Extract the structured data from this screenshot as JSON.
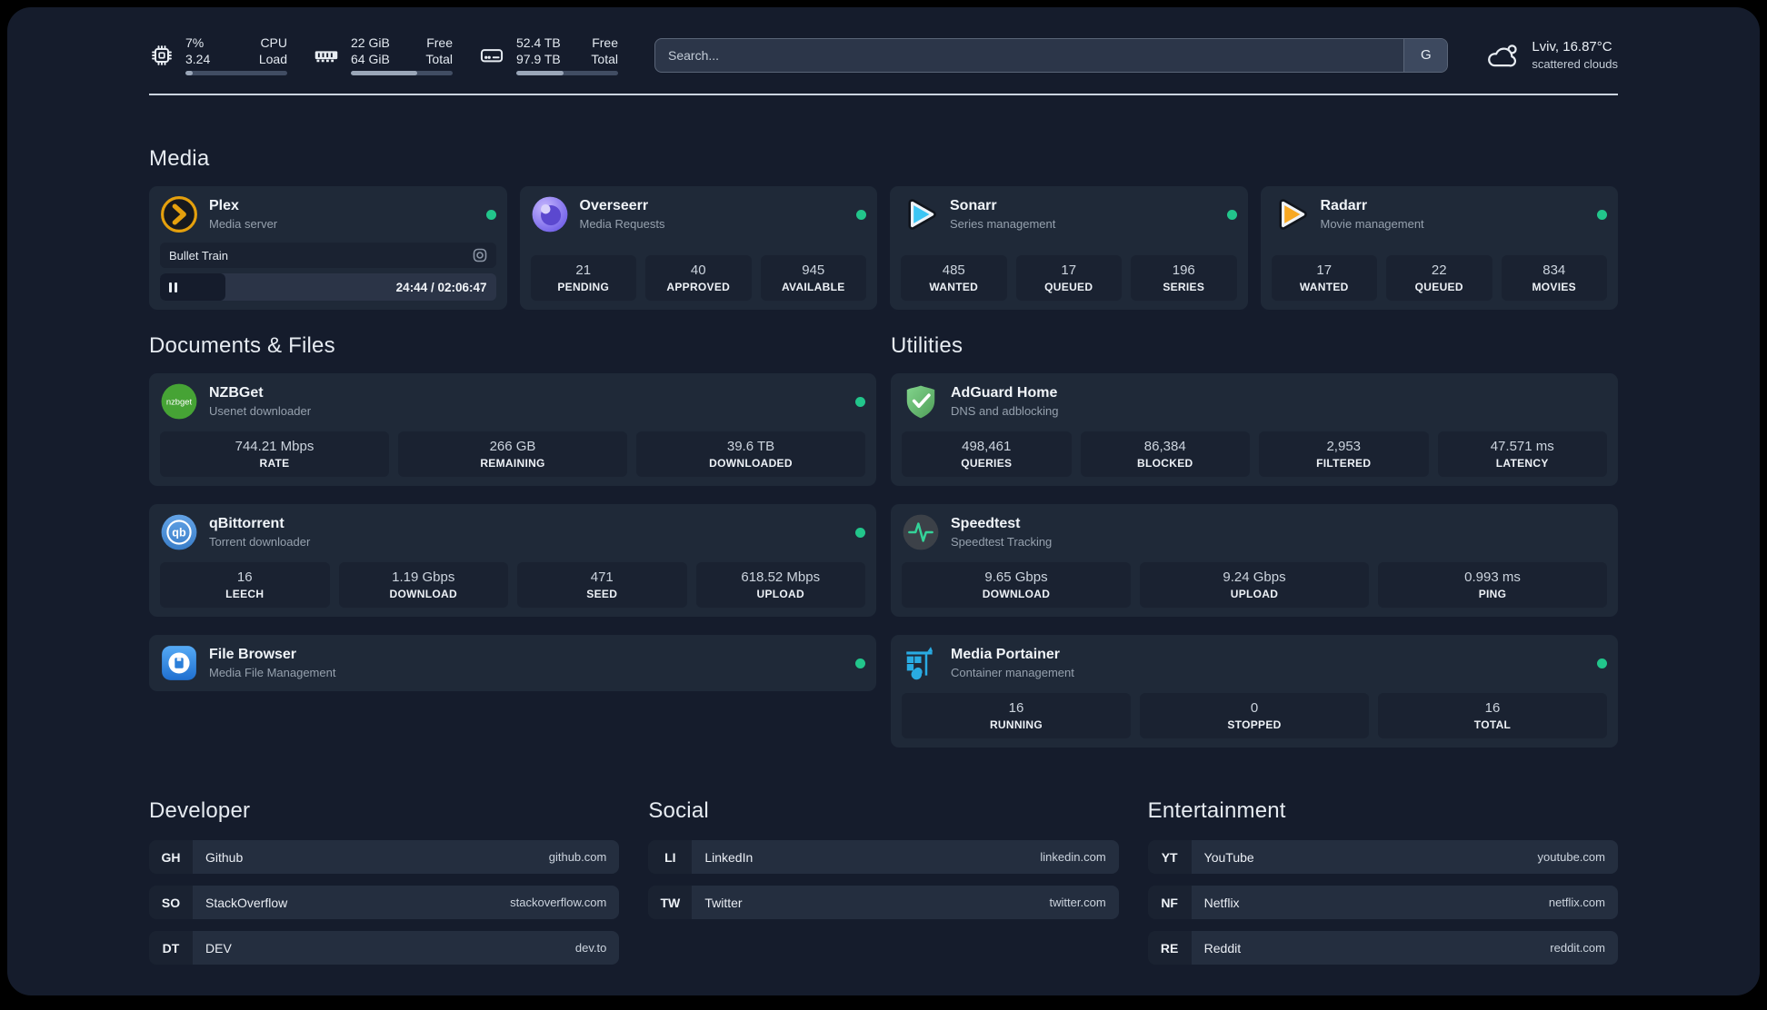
{
  "colors": {
    "background": "#151c2c",
    "card": "#1f2938",
    "status_online": "#22c58b",
    "plex_gold": "#e5a00d",
    "overseerr_purple": "#8571e6",
    "sonarr_blue": "#3cc5f4",
    "radarr_yellow": "#f7a823",
    "nzbget_green": "#46a335",
    "qbittorrent_blue": "#5290d9",
    "filebrowser_blue": "#2b7fd9",
    "adguard_green": "#6bbd74",
    "speedtest_pulse": "#34d399",
    "portainer_blue": "#29abe2"
  },
  "topbar": {
    "resources": [
      {
        "icon": "cpu-icon",
        "rows": [
          {
            "value": "7%",
            "label": "CPU"
          },
          {
            "value": "3.24",
            "label": "Load"
          }
        ],
        "percent": 7
      },
      {
        "icon": "memory-icon",
        "rows": [
          {
            "value": "22 GiB",
            "label": "Free"
          },
          {
            "value": "64 GiB",
            "label": "Total"
          }
        ],
        "percent": 65
      },
      {
        "icon": "disk-icon",
        "rows": [
          {
            "value": "52.4 TB",
            "label": "Free"
          },
          {
            "value": "97.9 TB",
            "label": "Total"
          }
        ],
        "percent": 46
      }
    ],
    "search": {
      "placeholder": "Search...",
      "button": "G"
    },
    "weather": {
      "location": "Lviv, 16.87°C",
      "condition": "scattered clouds"
    }
  },
  "sections": {
    "media": {
      "title": "Media",
      "cards": [
        {
          "name": "Plex",
          "subtitle": "Media server",
          "online": true,
          "player": {
            "title": "Bullet Train",
            "time": "24:44 / 02:06:47",
            "progress_percent": 19.5
          }
        },
        {
          "name": "Overseerr",
          "subtitle": "Media Requests",
          "online": true,
          "stats": [
            {
              "value": "21",
              "label": "PENDING"
            },
            {
              "value": "40",
              "label": "APPROVED"
            },
            {
              "value": "945",
              "label": "AVAILABLE"
            }
          ]
        },
        {
          "name": "Sonarr",
          "subtitle": "Series management",
          "online": true,
          "stats": [
            {
              "value": "485",
              "label": "WANTED"
            },
            {
              "value": "17",
              "label": "QUEUED"
            },
            {
              "value": "196",
              "label": "SERIES"
            }
          ]
        },
        {
          "name": "Radarr",
          "subtitle": "Movie management",
          "online": true,
          "stats": [
            {
              "value": "17",
              "label": "WANTED"
            },
            {
              "value": "22",
              "label": "QUEUED"
            },
            {
              "value": "834",
              "label": "MOVIES"
            }
          ]
        }
      ]
    },
    "documents": {
      "title": "Documents & Files",
      "cards": [
        {
          "name": "NZBGet",
          "subtitle": "Usenet downloader",
          "online": true,
          "stats": [
            {
              "value": "744.21 Mbps",
              "label": "RATE"
            },
            {
              "value": "266 GB",
              "label": "REMAINING"
            },
            {
              "value": "39.6 TB",
              "label": "DOWNLOADED"
            }
          ]
        },
        {
          "name": "qBittorrent",
          "subtitle": "Torrent downloader",
          "online": true,
          "stats": [
            {
              "value": "16",
              "label": "LEECH"
            },
            {
              "value": "1.19 Gbps",
              "label": "DOWNLOAD"
            },
            {
              "value": "471",
              "label": "SEED"
            },
            {
              "value": "618.52 Mbps",
              "label": "UPLOAD"
            }
          ]
        },
        {
          "name": "File Browser",
          "subtitle": "Media File Management",
          "online": true,
          "stats": []
        }
      ]
    },
    "utilities": {
      "title": "Utilities",
      "cards": [
        {
          "name": "AdGuard Home",
          "subtitle": "DNS and adblocking",
          "online": false,
          "stats": [
            {
              "value": "498,461",
              "label": "QUERIES"
            },
            {
              "value": "86,384",
              "label": "BLOCKED"
            },
            {
              "value": "2,953",
              "label": "FILTERED"
            },
            {
              "value": "47.571 ms",
              "label": "LATENCY"
            }
          ]
        },
        {
          "name": "Speedtest",
          "subtitle": "Speedtest Tracking",
          "online": false,
          "stats": [
            {
              "value": "9.65 Gbps",
              "label": "DOWNLOAD"
            },
            {
              "value": "9.24 Gbps",
              "label": "UPLOAD"
            },
            {
              "value": "0.993 ms",
              "label": "PING"
            }
          ]
        },
        {
          "name": "Media Portainer",
          "subtitle": "Container management",
          "online": true,
          "stats": [
            {
              "value": "16",
              "label": "RUNNING"
            },
            {
              "value": "0",
              "label": "STOPPED"
            },
            {
              "value": "16",
              "label": "TOTAL"
            }
          ]
        }
      ]
    },
    "bookmarks": [
      {
        "title": "Developer",
        "links": [
          {
            "abbr": "GH",
            "name": "Github",
            "url": "github.com"
          },
          {
            "abbr": "SO",
            "name": "StackOverflow",
            "url": "stackoverflow.com"
          },
          {
            "abbr": "DT",
            "name": "DEV",
            "url": "dev.to"
          }
        ]
      },
      {
        "title": "Social",
        "links": [
          {
            "abbr": "LI",
            "name": "LinkedIn",
            "url": "linkedin.com"
          },
          {
            "abbr": "TW",
            "name": "Twitter",
            "url": "twitter.com"
          }
        ]
      },
      {
        "title": "Entertainment",
        "links": [
          {
            "abbr": "YT",
            "name": "YouTube",
            "url": "youtube.com"
          },
          {
            "abbr": "NF",
            "name": "Netflix",
            "url": "netflix.com"
          },
          {
            "abbr": "RE",
            "name": "Reddit",
            "url": "reddit.com"
          }
        ]
      }
    ]
  }
}
